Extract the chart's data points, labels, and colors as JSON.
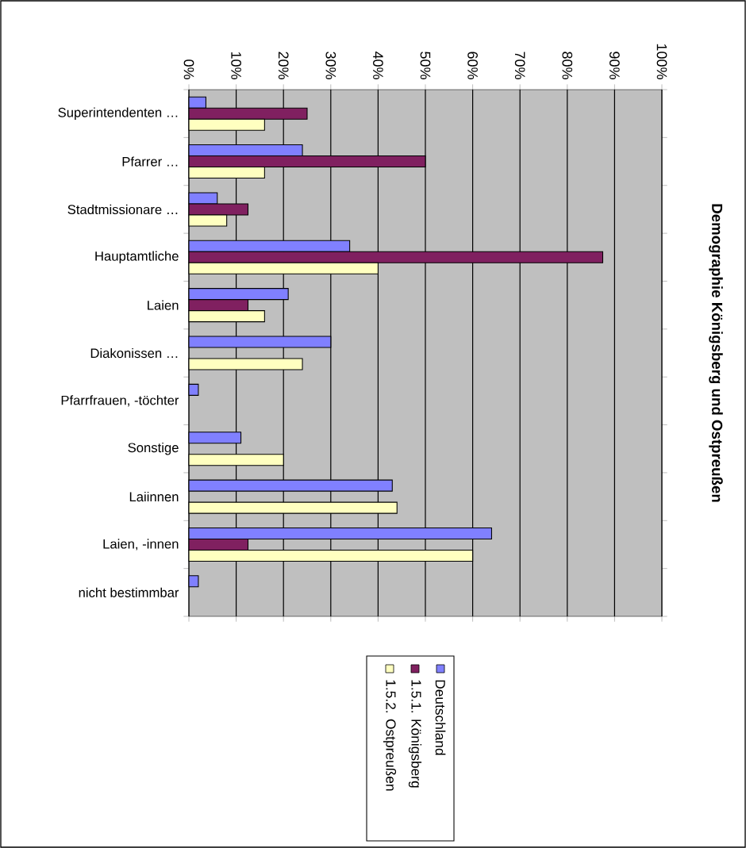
{
  "chart_data": {
    "type": "bar",
    "orientation": "horizontal",
    "title": "Demographie Königsberg und Ostpreußen",
    "categories": [
      "Superintendenten …",
      "Pfarrer …",
      "Stadtmissionare …",
      "Hauptamtliche",
      "Laien",
      "Diakonissen …",
      "Pfarrfrauen, -töchter",
      "Sonstige",
      "Laiinnen",
      "Laien, -innen",
      "nicht bestimmbar"
    ],
    "series": [
      {
        "name": "Deutschland",
        "color": "#8080ff",
        "values": [
          3.6,
          24,
          6,
          34,
          21,
          30,
          2,
          11,
          43,
          64,
          2
        ]
      },
      {
        "name": "1.5.1. Königsberg",
        "color": "#802060",
        "values": [
          25,
          50,
          12.5,
          87.5,
          12.5,
          null,
          null,
          null,
          null,
          12.5,
          null
        ]
      },
      {
        "name": "1.5.2. Ostpreußen",
        "color": "#ffffc0",
        "values": [
          16,
          16,
          8,
          40,
          16,
          24,
          null,
          20,
          44,
          60,
          null
        ]
      }
    ],
    "xlim": [
      0,
      100
    ],
    "xticks": [
      {
        "value": 0,
        "label": "0%"
      },
      {
        "value": 10,
        "label": "10%"
      },
      {
        "value": 20,
        "label": "20%"
      },
      {
        "value": 30,
        "label": "30%"
      },
      {
        "value": 40,
        "label": "40%"
      },
      {
        "value": 50,
        "label": "50%"
      },
      {
        "value": 60,
        "label": "60%"
      },
      {
        "value": 70,
        "label": "70%"
      },
      {
        "value": 80,
        "label": "80%"
      },
      {
        "value": 90,
        "label": "90%"
      },
      {
        "value": 100,
        "label": "100%"
      }
    ],
    "grid": "x",
    "legend": "bottom"
  }
}
